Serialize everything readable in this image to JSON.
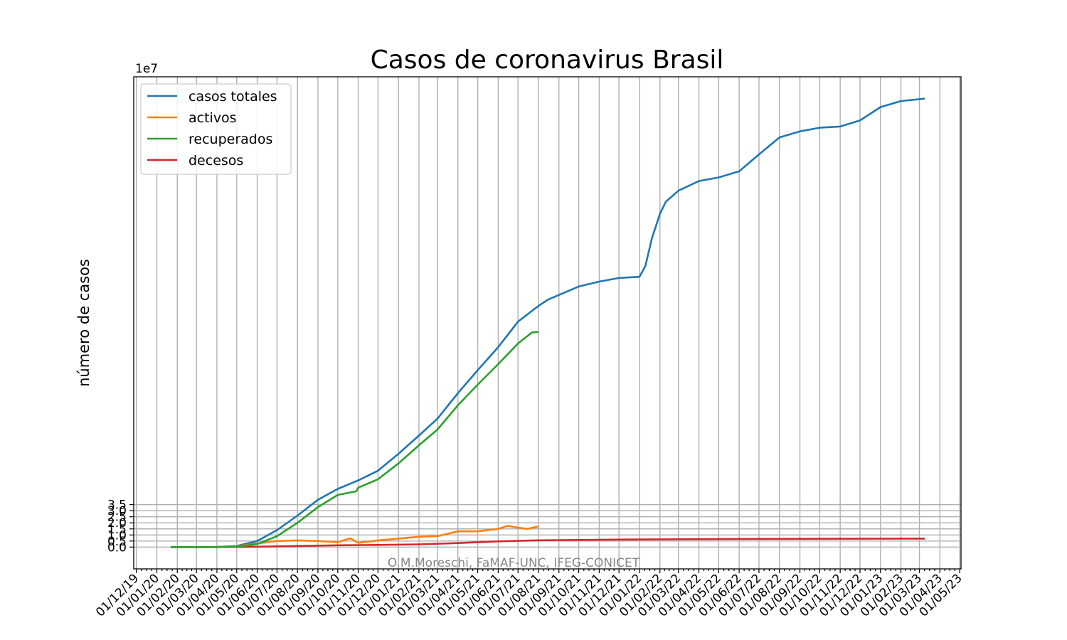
{
  "chart_data": {
    "type": "line",
    "title": "Casos de coronavirus Brasil",
    "xlabel": "",
    "ylabel": "número de casos",
    "y_offset_label": "1e7",
    "y_scale": 10000000,
    "ylim": [
      -1.8,
      38.8
    ],
    "y_ticks": [
      0.0,
      0.5,
      1.0,
      1.5,
      2.0,
      2.5,
      3.0,
      3.5
    ],
    "y_tick_labels": [
      "0.0",
      "0.5",
      "1.0",
      "1.5",
      "2.0",
      "2.5",
      "3.0",
      "3.5"
    ],
    "xlim": [
      "2019-11-27",
      "2023-05-03"
    ],
    "x_ticks": [
      "2019-12-01",
      "2020-01-01",
      "2020-02-01",
      "2020-03-01",
      "2020-04-01",
      "2020-05-01",
      "2020-06-01",
      "2020-07-01",
      "2020-08-01",
      "2020-09-01",
      "2020-10-01",
      "2020-11-01",
      "2020-12-01",
      "2021-01-01",
      "2021-02-01",
      "2021-03-01",
      "2021-04-01",
      "2021-05-01",
      "2021-06-01",
      "2021-07-01",
      "2021-08-01",
      "2021-09-01",
      "2021-10-01",
      "2021-11-01",
      "2021-12-01",
      "2022-01-01",
      "2022-02-01",
      "2022-03-01",
      "2022-04-01",
      "2022-05-01",
      "2022-06-01",
      "2022-07-01",
      "2022-08-01",
      "2022-09-01",
      "2022-10-01",
      "2022-11-01",
      "2022-12-01",
      "2023-01-01",
      "2023-02-01",
      "2023-03-01",
      "2023-04-01",
      "2023-05-01"
    ],
    "x_tick_labels": [
      "01/12/19",
      "01/01/20",
      "01/02/20",
      "01/03/20",
      "01/04/20",
      "01/05/20",
      "01/06/20",
      "01/07/20",
      "01/08/20",
      "01/09/20",
      "01/10/20",
      "01/11/20",
      "01/12/20",
      "01/01/21",
      "01/02/21",
      "01/03/21",
      "01/04/21",
      "01/05/21",
      "01/06/21",
      "01/07/21",
      "01/08/21",
      "01/09/21",
      "01/10/21",
      "01/11/21",
      "01/12/21",
      "01/01/22",
      "01/02/22",
      "01/03/22",
      "01/04/22",
      "01/05/22",
      "01/06/22",
      "01/07/22",
      "01/08/22",
      "01/09/22",
      "01/10/22",
      "01/11/22",
      "01/12/22",
      "01/01/23",
      "01/02/23",
      "01/03/23",
      "01/04/23",
      "01/05/23"
    ],
    "grid": true,
    "legend_position": "top-left",
    "annotation": "O.M.Moreschi, FaMAF-UNC, IFEG-CONICET",
    "series": [
      {
        "name": "casos totales",
        "color": "#1f77b4",
        "x": [
          "2020-01-22",
          "2020-03-01",
          "2020-04-01",
          "2020-05-01",
          "2020-06-01",
          "2020-07-01",
          "2020-08-01",
          "2020-09-01",
          "2020-10-01",
          "2020-11-01",
          "2020-12-01",
          "2021-01-01",
          "2021-02-01",
          "2021-03-01",
          "2021-04-01",
          "2021-05-01",
          "2021-06-01",
          "2021-07-01",
          "2021-08-01",
          "2021-08-15",
          "2021-09-01",
          "2021-10-01",
          "2021-11-01",
          "2021-12-01",
          "2022-01-01",
          "2022-01-10",
          "2022-01-20",
          "2022-02-01",
          "2022-02-10",
          "2022-03-01",
          "2022-04-01",
          "2022-05-01",
          "2022-06-01",
          "2022-07-01",
          "2022-08-01",
          "2022-09-01",
          "2022-10-01",
          "2022-11-01",
          "2022-12-01",
          "2023-01-01",
          "2023-02-01",
          "2023-03-09"
        ],
        "y": [
          0.0,
          0.0,
          0.006,
          0.09,
          0.5,
          1.4,
          2.6,
          3.9,
          4.8,
          5.5,
          6.3,
          7.7,
          9.2,
          10.6,
          12.7,
          14.6,
          16.5,
          18.6,
          19.9,
          20.4,
          20.8,
          21.5,
          21.9,
          22.2,
          22.3,
          23.2,
          25.5,
          27.5,
          28.5,
          29.4,
          30.2,
          30.5,
          31.0,
          32.4,
          33.8,
          34.3,
          34.6,
          34.7,
          35.2,
          36.3,
          36.8,
          37.0
        ]
      },
      {
        "name": "activos",
        "color": "#ff7f0e",
        "x": [
          "2020-01-22",
          "2020-03-01",
          "2020-04-01",
          "2020-05-01",
          "2020-06-01",
          "2020-07-01",
          "2020-08-01",
          "2020-09-01",
          "2020-10-01",
          "2020-10-20",
          "2020-11-01",
          "2020-12-01",
          "2021-01-01",
          "2021-02-01",
          "2021-03-01",
          "2021-04-01",
          "2021-05-01",
          "2021-06-01",
          "2021-06-15",
          "2021-07-01",
          "2021-07-15",
          "2021-08-01"
        ],
        "y": [
          0.0,
          0.0,
          0.005,
          0.06,
          0.3,
          0.5,
          0.55,
          0.5,
          0.4,
          0.72,
          0.35,
          0.55,
          0.7,
          0.85,
          0.9,
          1.3,
          1.3,
          1.5,
          1.75,
          1.6,
          1.5,
          1.7
        ]
      },
      {
        "name": "recuperados",
        "color": "#2ca02c",
        "x": [
          "2020-01-22",
          "2020-03-01",
          "2020-04-01",
          "2020-05-01",
          "2020-06-01",
          "2020-07-01",
          "2020-08-01",
          "2020-09-01",
          "2020-10-01",
          "2020-10-29",
          "2020-11-01",
          "2020-12-01",
          "2021-01-01",
          "2021-02-01",
          "2021-03-01",
          "2021-04-01",
          "2021-05-01",
          "2021-06-01",
          "2021-07-01",
          "2021-07-22",
          "2021-08-01"
        ],
        "y": [
          0.0,
          0.0,
          0.001,
          0.03,
          0.25,
          0.9,
          2.0,
          3.3,
          4.3,
          4.6,
          4.9,
          5.6,
          6.9,
          8.4,
          9.7,
          11.7,
          13.4,
          15.1,
          16.8,
          17.7,
          17.75
        ]
      },
      {
        "name": "decesos",
        "color": "#d62728",
        "x": [
          "2020-01-22",
          "2020-04-01",
          "2020-05-01",
          "2020-06-01",
          "2020-07-01",
          "2020-08-01",
          "2020-10-01",
          "2020-12-01",
          "2021-02-01",
          "2021-04-01",
          "2021-06-01",
          "2021-08-01",
          "2021-12-01",
          "2022-06-01",
          "2023-03-09"
        ],
        "y": [
          0.0,
          0.0005,
          0.005,
          0.03,
          0.06,
          0.09,
          0.145,
          0.175,
          0.225,
          0.33,
          0.47,
          0.56,
          0.62,
          0.67,
          0.7
        ]
      }
    ]
  }
}
